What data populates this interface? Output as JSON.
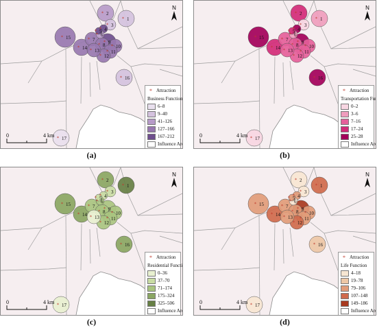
{
  "common": {
    "attraction_label": "Attraction",
    "influence_label": "Influence Area",
    "north_label": "N",
    "scale_start": "0",
    "scale_end": "4 km"
  },
  "point_labels": [
    "1",
    "2",
    "3",
    "4",
    "5",
    "6",
    "7",
    "8",
    "9",
    "10",
    "11",
    "12",
    "13",
    "14",
    "15",
    "16",
    "17"
  ],
  "panels": [
    {
      "caption": "(a)",
      "function_title": "Business Function",
      "classes": [
        {
          "label": "6–8",
          "color": "#e9e0ee"
        },
        {
          "label": "9–40",
          "color": "#d4c2de"
        },
        {
          "label": "41–126",
          "color": "#b79bc9"
        },
        {
          "label": "127–166",
          "color": "#9878b0"
        },
        {
          "label": "167–212",
          "color": "#6f4f8e"
        }
      ],
      "point_class": [
        1,
        2,
        1,
        4,
        4,
        2,
        3,
        3,
        4,
        3,
        3,
        3,
        3,
        3,
        3,
        1,
        0
      ]
    },
    {
      "caption": "(b)",
      "function_title": "Transportation Function",
      "classes": [
        {
          "label": "0–2",
          "color": "#f7d6e2"
        },
        {
          "label": "3–6",
          "color": "#ef9dbd"
        },
        {
          "label": "7–16",
          "color": "#e5609a"
        },
        {
          "label": "17–24",
          "color": "#d22b78"
        },
        {
          "label": "25–28",
          "color": "#a3005a"
        }
      ],
      "point_class": [
        1,
        3,
        0,
        4,
        3,
        1,
        2,
        2,
        4,
        2,
        2,
        2,
        2,
        3,
        4,
        4,
        0
      ]
    },
    {
      "caption": "(c)",
      "function_title": "Residential Function",
      "classes": [
        {
          "label": "0–36",
          "color": "#e8f0d0"
        },
        {
          "label": "37–70",
          "color": "#c9dca4"
        },
        {
          "label": "71–174",
          "color": "#a9c480"
        },
        {
          "label": "175–324",
          "color": "#8aa662"
        },
        {
          "label": "325–506",
          "color": "#667f44"
        }
      ],
      "point_class": [
        4,
        3,
        1,
        1,
        1,
        2,
        2,
        2,
        2,
        2,
        2,
        2,
        0,
        3,
        3,
        3,
        0
      ]
    },
    {
      "caption": "(d)",
      "function_title": "Life Function",
      "classes": [
        {
          "label": "4–18",
          "color": "#f7e6d2"
        },
        {
          "label": "19–78",
          "color": "#edc7a6"
        },
        {
          "label": "79–106",
          "color": "#e19c7a"
        },
        {
          "label": "107–148",
          "color": "#cf6a4c"
        },
        {
          "label": "149–186",
          "color": "#a8391f"
        }
      ],
      "point_class": [
        3,
        0,
        0,
        2,
        2,
        0,
        2,
        2,
        4,
        2,
        2,
        3,
        2,
        3,
        2,
        1,
        0
      ]
    }
  ]
}
